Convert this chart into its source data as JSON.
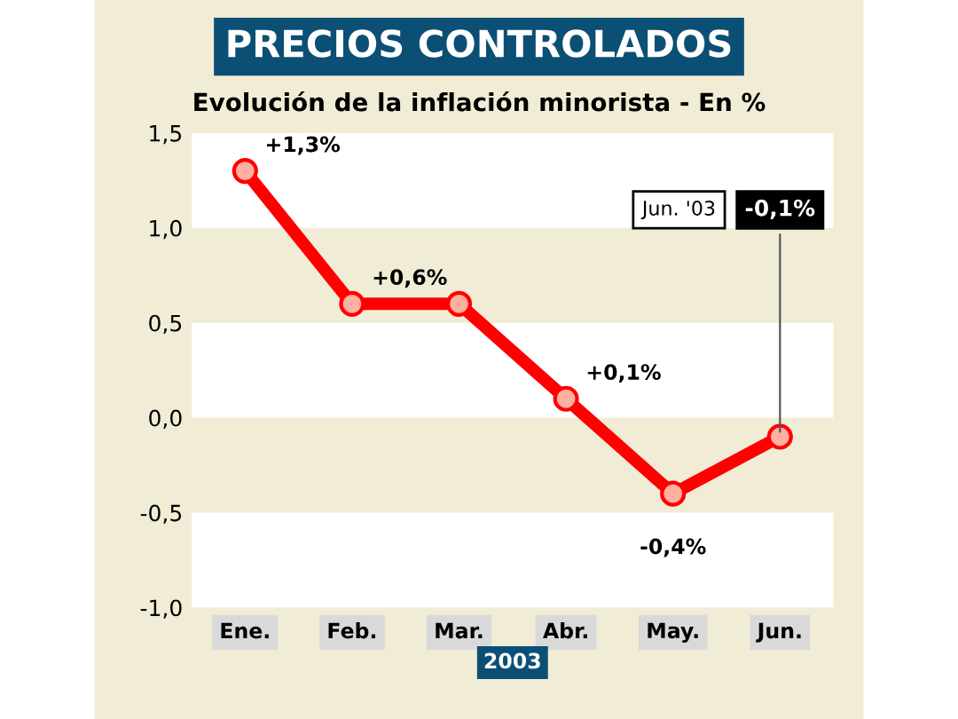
{
  "chart_data": {
    "type": "line",
    "title": "PRECIOS CONTROLADOS",
    "subtitle": "Evolución de la inflación minorista - En %",
    "xlabel": "2003",
    "categories": [
      "Ene.",
      "Feb.",
      "Mar.",
      "Abr.",
      "May.",
      "Jun."
    ],
    "series": [
      {
        "color": "#ff0000",
        "values": [
          1.3,
          0.6,
          0.6,
          0.1,
          -0.4,
          -0.1
        ],
        "value_labels": [
          "+1,3%",
          "+0,6%",
          null,
          "+0,1%",
          "-0,4%",
          "-0,1%"
        ]
      }
    ],
    "marker": "circle",
    "line_style": "solid",
    "ylim": [
      -1.0,
      1.5
    ],
    "yticks": [
      {
        "value": -1.0,
        "label": "-1,0"
      },
      {
        "value": -0.5,
        "label": "-0,5"
      },
      {
        "value": 0.0,
        "label": "0,0"
      },
      {
        "value": 0.5,
        "label": "0,5"
      },
      {
        "value": 1.0,
        "label": "1,0"
      },
      {
        "value": 1.5,
        "label": "1,5"
      }
    ],
    "bands": [
      {
        "axis": "y",
        "from": 1.0,
        "to": 1.5,
        "color": "#ffffff"
      },
      {
        "axis": "y",
        "from": 0.0,
        "to": 0.5,
        "color": "#ffffff"
      },
      {
        "axis": "y",
        "from": -1.0,
        "to": -0.5,
        "color": "#ffffff"
      }
    ],
    "annotations": [
      "Jun. '03"
    ],
    "grid": false,
    "legend": false
  }
}
